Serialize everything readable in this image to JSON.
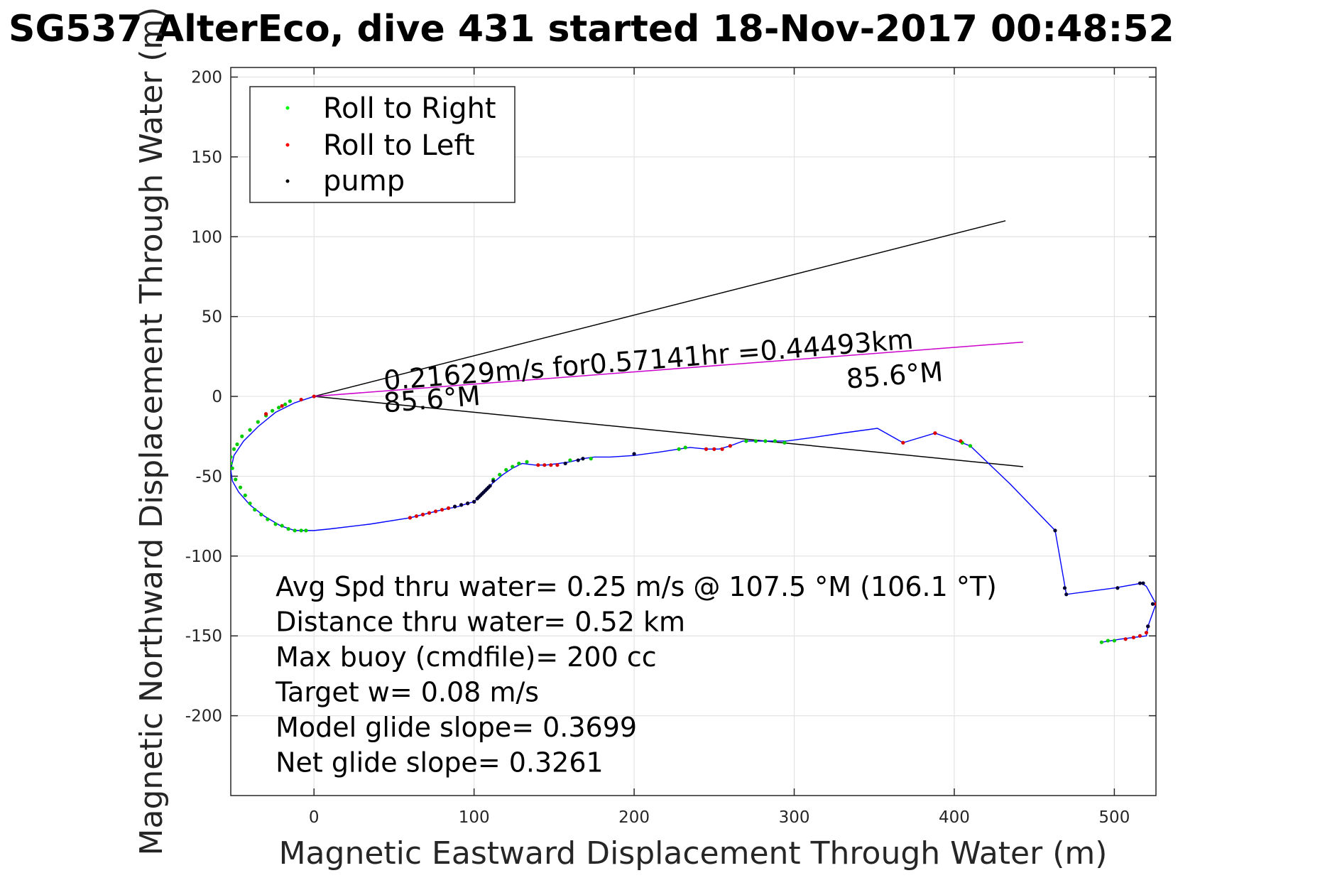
{
  "chart_data": {
    "type": "line",
    "title": "SG537 AlterEco, dive 431 started 18-Nov-2017 00:48:52",
    "xlabel": "Magnetic Eastward Displacement Through Water (m)",
    "ylabel": "Magnetic Northward Displacement Through Water (m)",
    "xlim": [
      -52,
      526
    ],
    "ylim": [
      -250,
      206
    ],
    "xticks": [
      0,
      100,
      200,
      300,
      400,
      500
    ],
    "yticks": [
      -200,
      -150,
      -100,
      -50,
      0,
      50,
      100,
      150,
      200
    ],
    "grid": true,
    "legend_position": "top-left",
    "legend": [
      {
        "label": "Roll to Right",
        "color": "#00ff00"
      },
      {
        "label": "Roll to Left",
        "color": "#ff0000"
      },
      {
        "label": "pump",
        "color": "#000000"
      }
    ],
    "track": {
      "color": "#0000ff",
      "x": [
        0,
        -12,
        -24,
        -35,
        -44,
        -50,
        -52,
        -51,
        -47,
        -40,
        -31,
        -21,
        -12,
        -5,
        0,
        10,
        35,
        60,
        68,
        80,
        90,
        96,
        100,
        102,
        105,
        108,
        112,
        118,
        124,
        130,
        138,
        145,
        153,
        160,
        168,
        175,
        185,
        200,
        215,
        228,
        235,
        245,
        253,
        260,
        268,
        276,
        285,
        295,
        310,
        330,
        352,
        368,
        388,
        402,
        410,
        435,
        463,
        470,
        500,
        517,
        520,
        526,
        521,
        520,
        512,
        504,
        498,
        492
      ],
      "y": [
        0,
        -4,
        -10,
        -19,
        -28,
        -37,
        -46,
        -53,
        -60,
        -68,
        -75,
        -81,
        -84,
        -84,
        -84,
        -83,
        -80,
        -76,
        -74,
        -71,
        -69,
        -67,
        -66,
        -64,
        -61,
        -58,
        -54,
        -49,
        -45,
        -42,
        -43,
        -43,
        -42,
        -41,
        -39,
        -38,
        -38,
        -37,
        -35,
        -33,
        -32,
        -33,
        -33,
        -31,
        -28,
        -28,
        -28,
        -28,
        -26,
        -23,
        -20,
        -29,
        -23,
        -28,
        -31,
        -55,
        -84,
        -124,
        -120,
        -117,
        -119,
        -130,
        -144,
        -150,
        -151,
        -152,
        -153,
        -154
      ]
    },
    "roll_right": {
      "color": "#00cc00",
      "x": [
        -48,
        -52,
        -51,
        -49,
        -46,
        -43,
        -40,
        -37,
        -33,
        -29,
        -24,
        -20,
        -16,
        -12,
        -8,
        -5,
        -50,
        -52,
        -45,
        -40,
        -35,
        -30,
        -26,
        -22,
        -18,
        -15,
        112,
        116,
        120,
        124,
        128,
        133,
        160,
        168,
        173,
        228,
        232,
        270,
        276,
        282,
        288,
        294,
        405,
        410,
        492,
        496,
        500
      ],
      "y": [
        -30,
        -38,
        -45,
        -52,
        -57,
        -62,
        -67,
        -71,
        -74,
        -77,
        -80,
        -81,
        -83,
        -84,
        -84,
        -84,
        -33,
        -42,
        -25,
        -21,
        -16,
        -12,
        -9,
        -7,
        -5,
        -3,
        -52,
        -49,
        -46,
        -44,
        -42,
        -41,
        -40,
        -39,
        -39,
        -33,
        -32,
        -28,
        -28,
        -28,
        -28,
        -29,
        -29,
        -31,
        -154,
        -153,
        -153
      ]
    },
    "roll_left": {
      "color": "#dd0000",
      "x": [
        60,
        64,
        68,
        72,
        76,
        80,
        84,
        88,
        92,
        96,
        100,
        140,
        144,
        148,
        152,
        245,
        250,
        255,
        260,
        368,
        388,
        404,
        507,
        512,
        516,
        520,
        521,
        526
      ],
      "y": [
        -76,
        -75,
        -74,
        -73,
        -72,
        -71,
        -70,
        -69,
        -68,
        -67,
        -66,
        -43,
        -43,
        -43,
        -43,
        -33,
        -33,
        -33,
        -31,
        -29,
        -23,
        -28,
        -152,
        -151,
        -150,
        -148,
        -144,
        -130
      ],
      "extra_x": [
        -8,
        -20,
        -30,
        0
      ],
      "extra_y": [
        -2,
        -6,
        -11,
        0
      ]
    },
    "pump": {
      "color": "#000033",
      "x": [
        88,
        92,
        96,
        100,
        102,
        103,
        104,
        105,
        106,
        107,
        108,
        109,
        110,
        112,
        157,
        165,
        168,
        200,
        463,
        469,
        470,
        502,
        516,
        518,
        521,
        524
      ],
      "y": [
        -69,
        -68,
        -67,
        -66,
        -64,
        -63,
        -62,
        -61,
        -60,
        -59,
        -58,
        -57,
        -56,
        -53,
        -42,
        -40,
        -39,
        -36,
        -84,
        -120,
        -124,
        -120,
        -117,
        -117,
        -144,
        -130
      ]
    },
    "heading_lines": [
      {
        "color": "#000000",
        "x": [
          0,
          432
        ],
        "y": [
          0,
          110
        ]
      },
      {
        "color": "#000000",
        "x": [
          0,
          443
        ],
        "y": [
          0,
          -44
        ]
      },
      {
        "color": "#cc00cc",
        "x": [
          0,
          443
        ],
        "y": [
          0,
          34
        ]
      }
    ],
    "annotations": [
      {
        "text": "0.21629m/s for0.57141hr =0.44493km",
        "x": 44,
        "y": 4,
        "rotate": -4.5
      },
      {
        "text": "85.6°M",
        "x": 44,
        "y": -10,
        "rotate": -4.5
      },
      {
        "text": "85.6°M",
        "x": 333,
        "y": 5,
        "rotate": -4.5
      }
    ],
    "info_lines": [
      "Avg Spd thru water=  0.25 m/s @ 107.5 °M (106.1 °T)",
      "Distance thru water=  0.52 km",
      "Max buoy (cmdfile)= 200 cc",
      "Target w= 0.08 m/s",
      "Model glide slope= 0.3699",
      "Net glide slope= 0.3261"
    ],
    "info_anchor": {
      "x": -24,
      "y": -125
    }
  }
}
